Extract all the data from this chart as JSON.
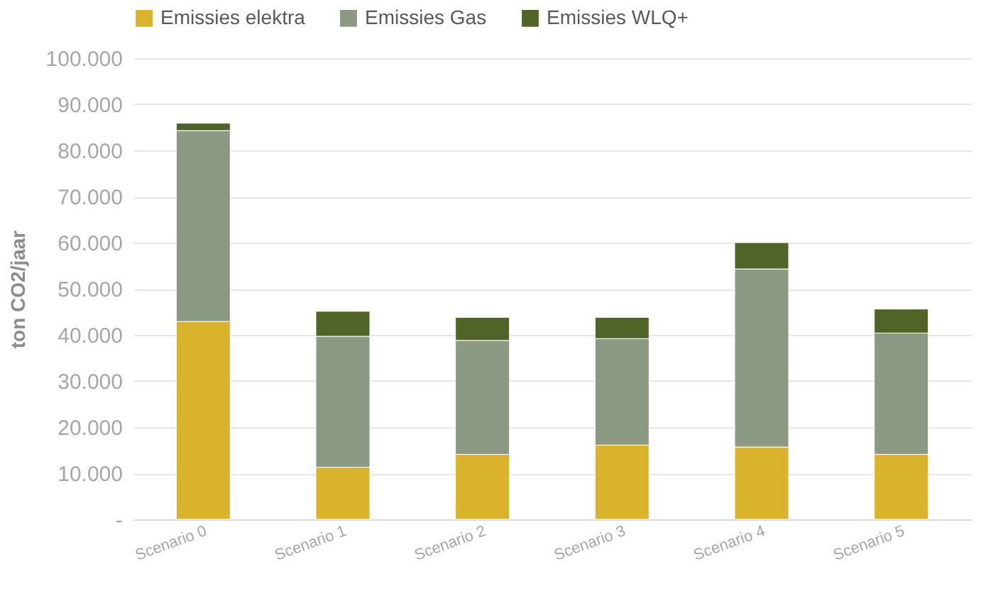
{
  "chart_data": {
    "type": "bar",
    "stacked": true,
    "ylabel": "ton CO2/jaar",
    "categories": [
      "Scenario 0",
      "Scenario 1",
      "Scenario 2",
      "Scenario 3",
      "Scenario 4",
      "Scenario 5"
    ],
    "series": [
      {
        "name": "Emissies elektra",
        "color": "#d9b32b",
        "values": [
          42900,
          11300,
          14100,
          16100,
          15700,
          14100
        ]
      },
      {
        "name": "Emissies Gas",
        "color": "#8c9982",
        "values": [
          41400,
          28400,
          24700,
          23100,
          38600,
          26300
        ]
      },
      {
        "name": "Emissies WLQ+",
        "color": "#4f6426",
        "values": [
          1600,
          5400,
          5000,
          4600,
          5700,
          5200
        ]
      }
    ],
    "ylim": [
      0,
      100000
    ],
    "yticks": [
      {
        "value": 0,
        "label": "-"
      },
      {
        "value": 10000,
        "label": "10.000"
      },
      {
        "value": 20000,
        "label": "20.000"
      },
      {
        "value": 30000,
        "label": "30.000"
      },
      {
        "value": 40000,
        "label": "40.000"
      },
      {
        "value": 50000,
        "label": "50.000"
      },
      {
        "value": 60000,
        "label": "60.000"
      },
      {
        "value": 70000,
        "label": "70.000"
      },
      {
        "value": 80000,
        "label": "80.000"
      },
      {
        "value": 90000,
        "label": "90.000"
      },
      {
        "value": 100000,
        "label": "100.000"
      }
    ],
    "grid": "y",
    "legend": "top"
  }
}
